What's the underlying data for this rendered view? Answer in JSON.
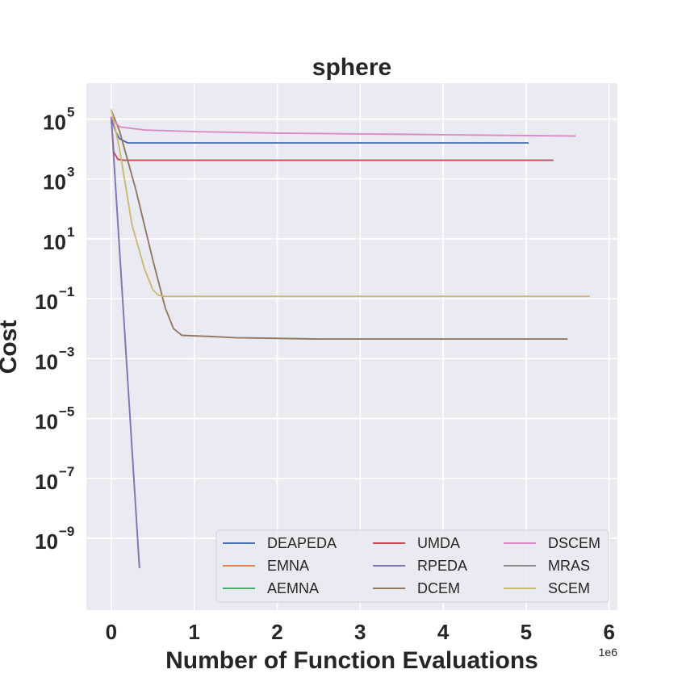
{
  "chart_data": {
    "type": "line",
    "title": "sphere",
    "xlabel": "Number of Function Evaluations",
    "ylabel": "Cost",
    "x_scale_label": "1e6",
    "x_scale": 1000000,
    "y_scale": "log",
    "xlim": [
      -0.3,
      6.1
    ],
    "ylim_exp": [
      -11.4,
      6.2
    ],
    "x_ticks": [
      0,
      1,
      2,
      3,
      4,
      5,
      6
    ],
    "y_ticks": [
      {
        "base": "10",
        "exp": "5",
        "value": 5
      },
      {
        "base": "10",
        "exp": "3",
        "value": 3
      },
      {
        "base": "10",
        "exp": "1",
        "value": 1
      },
      {
        "base": "10",
        "exp": "−1",
        "value": -1
      },
      {
        "base": "10",
        "exp": "−3",
        "value": -3
      },
      {
        "base": "10",
        "exp": "−5",
        "value": -5
      },
      {
        "base": "10",
        "exp": "−7",
        "value": -7
      },
      {
        "base": "10",
        "exp": "−9",
        "value": -9
      }
    ],
    "grid": true,
    "legend_position": "lower-right",
    "legend_columns": 3,
    "series": [
      {
        "name": "DEAPEDA",
        "color": "#4C72B0",
        "points": [
          [
            0,
            110000
          ],
          [
            0.05,
            40000
          ],
          [
            0.1,
            22000
          ],
          [
            0.2,
            16000
          ],
          [
            5.03,
            16000
          ]
        ]
      },
      {
        "name": "EMNA",
        "color": "#DD8452",
        "points": []
      },
      {
        "name": "AEMNA",
        "color": "#55A868",
        "points": []
      },
      {
        "name": "UMDA",
        "color": "#C44E52",
        "points": [
          [
            0,
            110000
          ],
          [
            0.03,
            8000
          ],
          [
            0.08,
            4500
          ],
          [
            0.15,
            4200
          ],
          [
            5.33,
            4200
          ]
        ]
      },
      {
        "name": "RPEDA",
        "color": "#8172B3",
        "points": [
          [
            0,
            120000
          ],
          [
            0.34,
            1e-10
          ]
        ]
      },
      {
        "name": "DCEM",
        "color": "#937860",
        "points": [
          [
            0,
            200000
          ],
          [
            0.1,
            40000
          ],
          [
            0.3,
            400
          ],
          [
            0.5,
            2
          ],
          [
            0.65,
            0.05
          ],
          [
            0.75,
            0.01
          ],
          [
            0.85,
            0.006
          ],
          [
            1.2,
            0.0055
          ],
          [
            1.5,
            0.005
          ],
          [
            2.5,
            0.0045
          ],
          [
            5.5,
            0.0045
          ]
        ]
      },
      {
        "name": "DSCEM",
        "color": "#DA8BC3",
        "points": [
          [
            0,
            110000
          ],
          [
            0.1,
            55000
          ],
          [
            0.4,
            43000
          ],
          [
            1,
            38000
          ],
          [
            2,
            34000
          ],
          [
            3,
            32000
          ],
          [
            4,
            30000
          ],
          [
            5,
            28000
          ],
          [
            5.6,
            27000
          ]
        ]
      },
      {
        "name": "MRAS",
        "color": "#8C8C8C",
        "points": []
      },
      {
        "name": "SCEM",
        "color": "#CCB974",
        "points": [
          [
            0,
            210000
          ],
          [
            0.1,
            10000
          ],
          [
            0.25,
            30
          ],
          [
            0.4,
            1
          ],
          [
            0.5,
            0.2
          ],
          [
            0.57,
            0.13
          ],
          [
            0.65,
            0.12
          ],
          [
            5.77,
            0.12
          ]
        ]
      }
    ]
  }
}
